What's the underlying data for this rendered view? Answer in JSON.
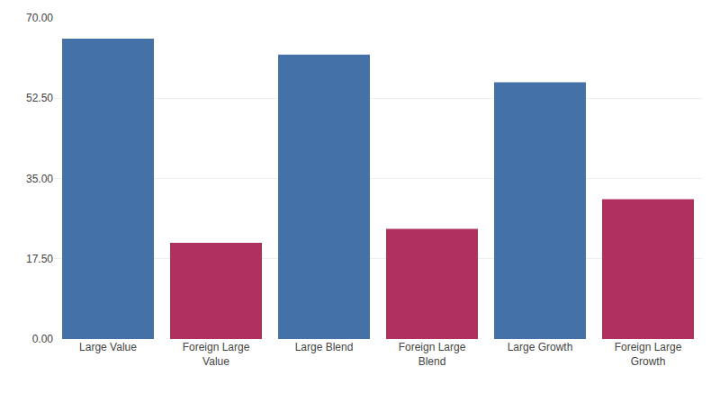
{
  "chart_data": {
    "type": "bar",
    "categories": [
      "Large Value",
      "Foreign Large\nValue",
      "Large Blend",
      "Foreign Large\nBlend",
      "Large Growth",
      "Foreign Large\nGrowth"
    ],
    "values": [
      65.5,
      21.0,
      62.0,
      24.0,
      56.0,
      30.5
    ],
    "colors": [
      "#4472a8",
      "#b03060",
      "#4472a8",
      "#b03060",
      "#4472a8",
      "#b03060"
    ],
    "ylim": [
      0,
      70
    ],
    "yticks": [
      {
        "value": 0,
        "label": "0.00"
      },
      {
        "value": 17.5,
        "label": "17.50"
      },
      {
        "value": 35,
        "label": "35.00"
      },
      {
        "value": 52.5,
        "label": "52.50"
      },
      {
        "value": 70,
        "label": "70.00"
      }
    ],
    "grid": true
  }
}
